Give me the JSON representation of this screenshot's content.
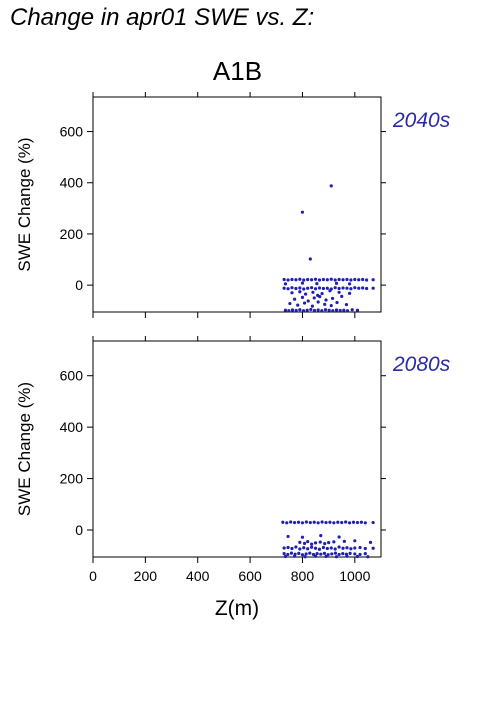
{
  "title": "Change in apr01 SWE vs. Z:",
  "scenario": "A1B",
  "point_color": "#1f1fb4",
  "chart_data": [
    {
      "type": "scatter",
      "label": "2040s",
      "xlabel": "Z(m)",
      "ylabel": "SWE Change (%)",
      "xlim": [
        0,
        1100
      ],
      "ylim": [
        -105,
        735
      ],
      "xticks": [
        0,
        200,
        400,
        600,
        800,
        1000
      ],
      "yticks": [
        0,
        200,
        400,
        600
      ],
      "points": [
        [
          910,
          388
        ],
        [
          800,
          285
        ],
        [
          830,
          102
        ],
        [
          730,
          22
        ],
        [
          745,
          20
        ],
        [
          760,
          22
        ],
        [
          775,
          21
        ],
        [
          790,
          23
        ],
        [
          805,
          20
        ],
        [
          820,
          22
        ],
        [
          835,
          21
        ],
        [
          850,
          23
        ],
        [
          865,
          20
        ],
        [
          880,
          22
        ],
        [
          895,
          21
        ],
        [
          910,
          23
        ],
        [
          925,
          20
        ],
        [
          940,
          22
        ],
        [
          955,
          21
        ],
        [
          970,
          22
        ],
        [
          985,
          20
        ],
        [
          1000,
          22
        ],
        [
          1015,
          21
        ],
        [
          1030,
          22
        ],
        [
          1045,
          20
        ],
        [
          1070,
          21
        ],
        [
          735,
          5
        ],
        [
          800,
          8
        ],
        [
          855,
          6
        ],
        [
          930,
          7
        ],
        [
          980,
          5
        ],
        [
          730,
          -12
        ],
        [
          745,
          -14
        ],
        [
          760,
          -10
        ],
        [
          775,
          -13
        ],
        [
          790,
          -11
        ],
        [
          805,
          -15
        ],
        [
          820,
          -12
        ],
        [
          835,
          -10
        ],
        [
          850,
          -14
        ],
        [
          865,
          -11
        ],
        [
          880,
          -13
        ],
        [
          895,
          -12
        ],
        [
          910,
          -15
        ],
        [
          925,
          -10
        ],
        [
          940,
          -13
        ],
        [
          955,
          -11
        ],
        [
          970,
          -12
        ],
        [
          985,
          -14
        ],
        [
          1000,
          -10
        ],
        [
          1015,
          -12
        ],
        [
          1030,
          -11
        ],
        [
          1045,
          -13
        ],
        [
          1070,
          -12
        ],
        [
          760,
          -30
        ],
        [
          790,
          -26
        ],
        [
          812,
          -35
        ],
        [
          840,
          -28
        ],
        [
          858,
          -40
        ],
        [
          875,
          -33
        ],
        [
          905,
          -22
        ],
        [
          940,
          -28
        ],
        [
          980,
          -32
        ],
        [
          770,
          -55
        ],
        [
          800,
          -48
        ],
        [
          822,
          -62
        ],
        [
          845,
          -50
        ],
        [
          866,
          -45
        ],
        [
          890,
          -58
        ],
        [
          915,
          -52
        ],
        [
          950,
          -44
        ],
        [
          752,
          -72
        ],
        [
          782,
          -78
        ],
        [
          808,
          -70
        ],
        [
          838,
          -82
        ],
        [
          860,
          -66
        ],
        [
          885,
          -75
        ],
        [
          910,
          -80
        ],
        [
          932,
          -68
        ],
        [
          968,
          -76
        ],
        [
          735,
          -98
        ],
        [
          748,
          -100
        ],
        [
          762,
          -97
        ],
        [
          776,
          -99
        ],
        [
          790,
          -96
        ],
        [
          804,
          -100
        ],
        [
          818,
          -98
        ],
        [
          832,
          -95
        ],
        [
          846,
          -99
        ],
        [
          860,
          -97
        ],
        [
          874,
          -100
        ],
        [
          888,
          -96
        ],
        [
          902,
          -98
        ],
        [
          916,
          -100
        ],
        [
          930,
          -97
        ],
        [
          944,
          -99
        ],
        [
          958,
          -98
        ],
        [
          972,
          -100
        ],
        [
          990,
          -96
        ],
        [
          1010,
          -98
        ]
      ]
    },
    {
      "type": "scatter",
      "label": "2080s",
      "xlabel": "Z(m)",
      "ylabel": "SWE Change (%)",
      "xlim": [
        0,
        1100
      ],
      "ylim": [
        -105,
        735
      ],
      "xticks": [
        0,
        200,
        400,
        600,
        800,
        1000
      ],
      "yticks": [
        0,
        200,
        400,
        600
      ],
      "points": [
        [
          725,
          30
        ],
        [
          740,
          28
        ],
        [
          755,
          31
        ],
        [
          770,
          29
        ],
        [
          785,
          30
        ],
        [
          800,
          28
        ],
        [
          815,
          31
        ],
        [
          830,
          29
        ],
        [
          845,
          30
        ],
        [
          860,
          28
        ],
        [
          875,
          31
        ],
        [
          890,
          29
        ],
        [
          905,
          30
        ],
        [
          920,
          28
        ],
        [
          935,
          30
        ],
        [
          950,
          29
        ],
        [
          965,
          31
        ],
        [
          980,
          28
        ],
        [
          995,
          30
        ],
        [
          1010,
          29
        ],
        [
          1025,
          30
        ],
        [
          1040,
          28
        ],
        [
          1070,
          29
        ],
        [
          745,
          -25
        ],
        [
          800,
          -28
        ],
        [
          870,
          -22
        ],
        [
          940,
          -27
        ],
        [
          790,
          -48
        ],
        [
          808,
          -52
        ],
        [
          820,
          -45
        ],
        [
          835,
          -55
        ],
        [
          850,
          -50
        ],
        [
          868,
          -47
        ],
        [
          885,
          -53
        ],
        [
          900,
          -49
        ],
        [
          920,
          -46
        ],
        [
          960,
          -44
        ],
        [
          1000,
          -42
        ],
        [
          1060,
          -48
        ],
        [
          730,
          -70
        ],
        [
          745,
          -68
        ],
        [
          760,
          -72
        ],
        [
          775,
          -66
        ],
        [
          790,
          -74
        ],
        [
          805,
          -69
        ],
        [
          820,
          -73
        ],
        [
          835,
          -67
        ],
        [
          850,
          -71
        ],
        [
          865,
          -75
        ],
        [
          880,
          -68
        ],
        [
          895,
          -72
        ],
        [
          910,
          -70
        ],
        [
          925,
          -74
        ],
        [
          940,
          -66
        ],
        [
          955,
          -71
        ],
        [
          970,
          -69
        ],
        [
          985,
          -73
        ],
        [
          1000,
          -70
        ],
        [
          1020,
          -68
        ],
        [
          1040,
          -72
        ],
        [
          1070,
          -71
        ],
        [
          730,
          -92
        ],
        [
          744,
          -95
        ],
        [
          758,
          -90
        ],
        [
          772,
          -94
        ],
        [
          786,
          -91
        ],
        [
          800,
          -96
        ],
        [
          814,
          -93
        ],
        [
          828,
          -90
        ],
        [
          842,
          -95
        ],
        [
          856,
          -92
        ],
        [
          870,
          -94
        ],
        [
          884,
          -91
        ],
        [
          898,
          -96
        ],
        [
          912,
          -93
        ],
        [
          926,
          -90
        ],
        [
          940,
          -95
        ],
        [
          954,
          -92
        ],
        [
          968,
          -94
        ],
        [
          982,
          -91
        ],
        [
          1000,
          -93
        ],
        [
          1020,
          -95
        ],
        [
          1040,
          -92
        ],
        [
          735,
          -103
        ],
        [
          770,
          -102
        ],
        [
          810,
          -104
        ],
        [
          850,
          -102
        ],
        [
          890,
          -103
        ],
        [
          930,
          -104
        ],
        [
          970,
          -102
        ],
        [
          1010,
          -103
        ],
        [
          1050,
          -104
        ]
      ]
    }
  ]
}
